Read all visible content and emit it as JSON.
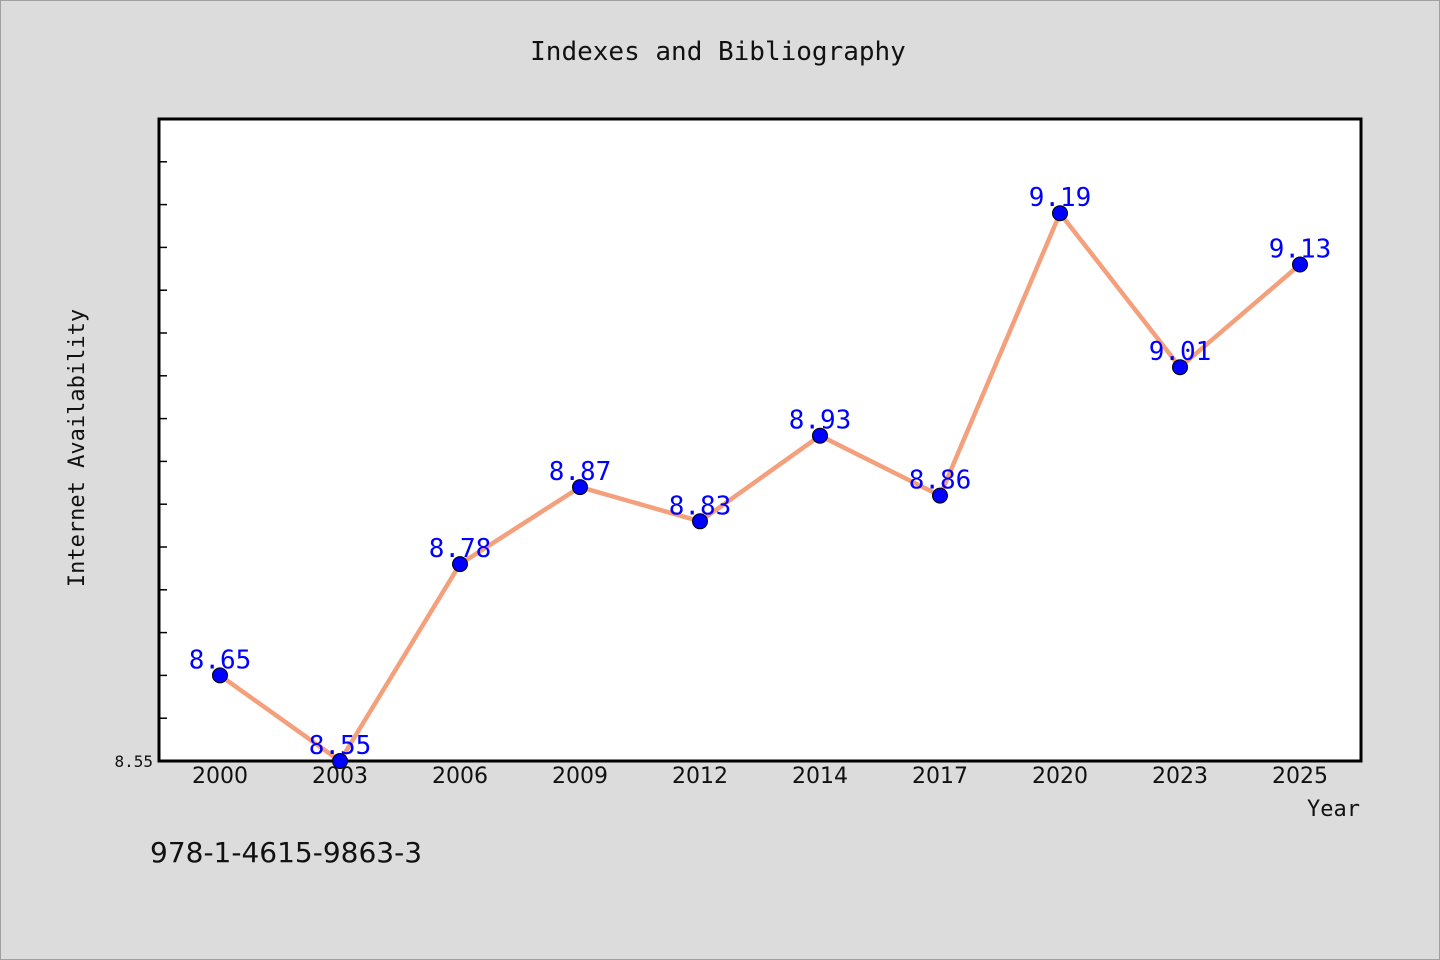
{
  "chart_data": {
    "type": "line",
    "title": "Indexes and Bibliography",
    "xlabel": "Year",
    "ylabel": "Internet Availability",
    "categories": [
      "2000",
      "2003",
      "2006",
      "2009",
      "2012",
      "2014",
      "2017",
      "2020",
      "2023",
      "2025"
    ],
    "values": [
      8.65,
      8.55,
      8.78,
      8.87,
      8.83,
      8.93,
      8.86,
      9.19,
      9.01,
      9.13
    ],
    "data_labels": [
      "8.65",
      "8.55",
      "8.78",
      "8.87",
      "8.83",
      "8.93",
      "8.86",
      "9.19",
      "9.01",
      "9.13"
    ],
    "y_tick_label": "8.55",
    "ylim": [
      8.55,
      9.3
    ],
    "grid": false,
    "line_color": "#f4a07c",
    "marker_color": "#0000ff",
    "label_color": "#0000ff"
  },
  "footer": {
    "isbn": "978-1-4615-9863-3"
  }
}
